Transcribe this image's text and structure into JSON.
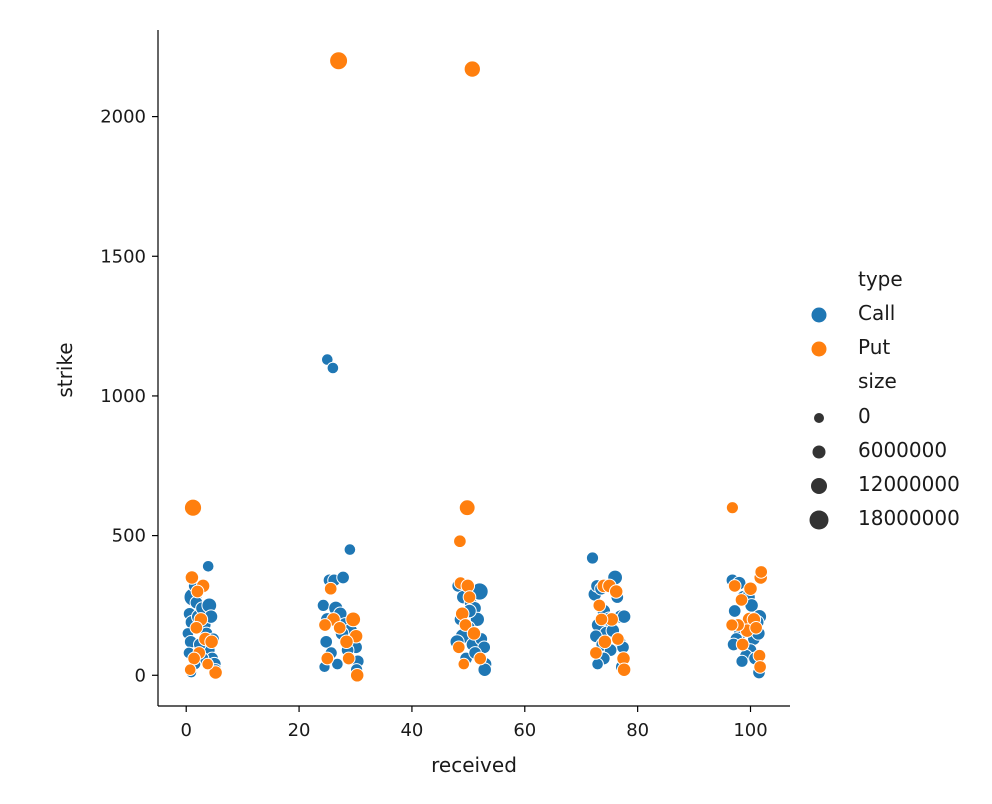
{
  "chart_data": {
    "type": "scatter",
    "title": "",
    "xlabel": "received",
    "ylabel": "strike",
    "xlim": [
      -5,
      107
    ],
    "ylim": [
      -110,
      2310
    ],
    "xticks": [
      0,
      20,
      40,
      60,
      80,
      100
    ],
    "yticks": [
      0,
      500,
      1000,
      1500,
      2000
    ],
    "grid": false,
    "legend_position": "right",
    "colors": {
      "Call": "#1f77b4",
      "Put": "#ff7f0e"
    },
    "legend": {
      "hue_title": "type",
      "hue_entries": [
        "Call",
        "Put"
      ],
      "size_title": "size",
      "size_entries": [
        {
          "label": "0",
          "value": 0
        },
        {
          "label": "6000000",
          "value": 6000000
        },
        {
          "label": "12000000",
          "value": 12000000
        },
        {
          "label": "18000000",
          "value": 18000000
        }
      ]
    },
    "series": [
      {
        "name": "Call",
        "points": [
          [
            1.2,
            280,
            12000000
          ],
          [
            0.6,
            220,
            2000000
          ],
          [
            1.0,
            190,
            3000000
          ],
          [
            0.3,
            150,
            1000000
          ],
          [
            1.5,
            320,
            2000000
          ],
          [
            0.8,
            120,
            2000000
          ],
          [
            0.5,
            80,
            1000000
          ],
          [
            1.8,
            260,
            2000000
          ],
          [
            2.2,
            210,
            4000000
          ],
          [
            2.8,
            240,
            2000000
          ],
          [
            3.2,
            180,
            3000000
          ],
          [
            3.6,
            150,
            2000000
          ],
          [
            3.9,
            390,
            1000000
          ],
          [
            4.1,
            250,
            5000000
          ],
          [
            4.4,
            210,
            3000000
          ],
          [
            4.0,
            90,
            2000000
          ],
          [
            4.6,
            60,
            2000000
          ],
          [
            5.0,
            40,
            3000000
          ],
          [
            5.2,
            20,
            1500000
          ],
          [
            2.4,
            110,
            2000000
          ],
          [
            3.0,
            60,
            1000000
          ],
          [
            1.6,
            40,
            800000
          ],
          [
            0.9,
            10,
            500000
          ],
          [
            4.8,
            130,
            1500000
          ],
          [
            25.0,
            1130,
            1000000
          ],
          [
            26.0,
            1100,
            1000000
          ],
          [
            29.0,
            450,
            1000000
          ],
          [
            24.3,
            250,
            1500000
          ],
          [
            25.4,
            340,
            2000000
          ],
          [
            26.2,
            340,
            2000000
          ],
          [
            27.8,
            350,
            2000000
          ],
          [
            25.0,
            200,
            3000000
          ],
          [
            26.5,
            240,
            4000000
          ],
          [
            27.3,
            220,
            3000000
          ],
          [
            28.2,
            180,
            5000000
          ],
          [
            29.1,
            160,
            4000000
          ],
          [
            29.6,
            120,
            3000000
          ],
          [
            30.1,
            100,
            2000000
          ],
          [
            30.4,
            50,
            2000000
          ],
          [
            30.2,
            20,
            1500000
          ],
          [
            24.8,
            120,
            2000000
          ],
          [
            25.7,
            80,
            1500000
          ],
          [
            26.8,
            40,
            1000000
          ],
          [
            27.6,
            150,
            3000000
          ],
          [
            28.6,
            90,
            2000000
          ],
          [
            24.5,
            30,
            800000
          ],
          [
            48.2,
            320,
            2000000
          ],
          [
            49.1,
            280,
            3000000
          ],
          [
            50.4,
            260,
            2000000
          ],
          [
            51.1,
            240,
            3000000
          ],
          [
            52.0,
            300,
            10000000
          ],
          [
            51.6,
            200,
            4000000
          ],
          [
            50.0,
            170,
            3000000
          ],
          [
            49.0,
            140,
            5000000
          ],
          [
            48.0,
            120,
            4000000
          ],
          [
            50.8,
            110,
            3000000
          ],
          [
            52.3,
            130,
            2000000
          ],
          [
            52.8,
            100,
            2000000
          ],
          [
            53.0,
            40,
            2500000
          ],
          [
            52.9,
            20,
            3000000
          ],
          [
            49.6,
            60,
            2000000
          ],
          [
            51.2,
            80,
            2000000
          ],
          [
            50.2,
            230,
            3000000
          ],
          [
            48.6,
            200,
            2000000
          ],
          [
            72.0,
            420,
            1500000
          ],
          [
            72.4,
            290,
            3000000
          ],
          [
            72.8,
            320,
            2000000
          ],
          [
            73.5,
            310,
            2000000
          ],
          [
            76.0,
            350,
            5000000
          ],
          [
            76.4,
            280,
            2000000
          ],
          [
            77.0,
            210,
            3000000
          ],
          [
            77.6,
            210,
            3000000
          ],
          [
            74.0,
            230,
            3000000
          ],
          [
            75.0,
            200,
            5000000
          ],
          [
            73.0,
            180,
            3000000
          ],
          [
            74.5,
            150,
            4000000
          ],
          [
            75.6,
            160,
            3000000
          ],
          [
            72.6,
            140,
            2000000
          ],
          [
            73.8,
            110,
            3000000
          ],
          [
            76.8,
            120,
            2000000
          ],
          [
            77.4,
            100,
            2000000
          ],
          [
            75.2,
            90,
            2000000
          ],
          [
            74.0,
            60,
            2000000
          ],
          [
            77.2,
            30,
            2000000
          ],
          [
            72.9,
            40,
            1000000
          ],
          [
            96.8,
            340,
            2000000
          ],
          [
            97.2,
            230,
            2000000
          ],
          [
            98.0,
            330,
            3000000
          ],
          [
            98.8,
            280,
            3000000
          ],
          [
            99.6,
            280,
            4000000
          ],
          [
            100.2,
            250,
            3000000
          ],
          [
            101.6,
            210,
            4000000
          ],
          [
            101.2,
            190,
            3000000
          ],
          [
            99.0,
            180,
            3000000
          ],
          [
            98.2,
            150,
            3000000
          ],
          [
            97.5,
            130,
            2000000
          ],
          [
            100.6,
            130,
            2000000
          ],
          [
            101.4,
            150,
            3000000
          ],
          [
            100.0,
            90,
            2000000
          ],
          [
            99.2,
            70,
            2000000
          ],
          [
            98.5,
            50,
            1500000
          ],
          [
            101.5,
            10,
            2000000
          ],
          [
            97.0,
            110,
            2000000
          ],
          [
            100.8,
            60,
            2000000
          ]
        ]
      },
      {
        "name": "Put",
        "points": [
          [
            27.0,
            2200,
            12000000
          ],
          [
            50.7,
            2170,
            8000000
          ],
          [
            1.2,
            600,
            10000000
          ],
          [
            49.8,
            600,
            7000000
          ],
          [
            48.5,
            480,
            2000000
          ],
          [
            96.8,
            600,
            1500000
          ],
          [
            1.0,
            350,
            3000000
          ],
          [
            3.0,
            320,
            3000000
          ],
          [
            2.0,
            300,
            2000000
          ],
          [
            2.6,
            200,
            3000000
          ],
          [
            1.8,
            170,
            2000000
          ],
          [
            3.4,
            130,
            3000000
          ],
          [
            4.5,
            120,
            3000000
          ],
          [
            2.3,
            80,
            2000000
          ],
          [
            1.4,
            60,
            2000000
          ],
          [
            5.2,
            10,
            3000000
          ],
          [
            3.8,
            40,
            1000000
          ],
          [
            0.7,
            20,
            1000000
          ],
          [
            25.6,
            310,
            2000000
          ],
          [
            26.1,
            200,
            3000000
          ],
          [
            29.6,
            200,
            5000000
          ],
          [
            30.1,
            140,
            3000000
          ],
          [
            27.2,
            170,
            2000000
          ],
          [
            28.4,
            120,
            3000000
          ],
          [
            30.3,
            0,
            3000000
          ],
          [
            25.0,
            60,
            2000000
          ],
          [
            28.8,
            60,
            2000000
          ],
          [
            24.6,
            180,
            2000000
          ],
          [
            48.6,
            330,
            2000000
          ],
          [
            49.9,
            320,
            3000000
          ],
          [
            50.2,
            280,
            2000000
          ],
          [
            48.9,
            220,
            3000000
          ],
          [
            49.5,
            180,
            2000000
          ],
          [
            51.0,
            150,
            3000000
          ],
          [
            48.3,
            100,
            2000000
          ],
          [
            52.1,
            60,
            2000000
          ],
          [
            49.2,
            40,
            1000000
          ],
          [
            73.2,
            250,
            2000000
          ],
          [
            74.0,
            320,
            3000000
          ],
          [
            75.0,
            320,
            3000000
          ],
          [
            76.2,
            300,
            3000000
          ],
          [
            75.4,
            200,
            3000000
          ],
          [
            74.2,
            120,
            3000000
          ],
          [
            73.6,
            200,
            2000000
          ],
          [
            76.5,
            130,
            2000000
          ],
          [
            77.5,
            60,
            3000000
          ],
          [
            77.6,
            20,
            3000000
          ],
          [
            72.6,
            80,
            2000000
          ],
          [
            97.2,
            320,
            2000000
          ],
          [
            98.4,
            270,
            2000000
          ],
          [
            99.8,
            200,
            4000000
          ],
          [
            100.0,
            310,
            3000000
          ],
          [
            101.8,
            350,
            3000000
          ],
          [
            101.9,
            370,
            2000000
          ],
          [
            100.6,
            200,
            3000000
          ],
          [
            99.4,
            160,
            3000000
          ],
          [
            98.6,
            110,
            2000000
          ],
          [
            101.0,
            170,
            2000000
          ],
          [
            101.6,
            70,
            2000000
          ],
          [
            101.7,
            30,
            2000000
          ],
          [
            97.8,
            180,
            2000000
          ],
          [
            96.7,
            180,
            1500000
          ]
        ]
      }
    ]
  }
}
